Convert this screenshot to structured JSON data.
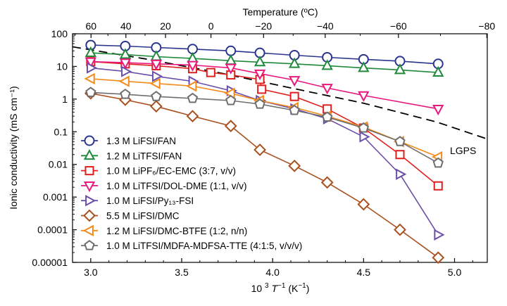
{
  "chart_data": {
    "type": "scatter",
    "xlabel": "10³ T⁻¹ (K⁻¹)",
    "ylabel": "Ionic conductivity (mS cm⁻¹)",
    "top_xlabel": "Temperature (ºC)",
    "xlim": [
      2.9,
      5.18
    ],
    "ylim": [
      1e-05,
      100
    ],
    "yscale": "log",
    "xticks": [
      3.0,
      3.5,
      4.0,
      4.5,
      5.0
    ],
    "xtick_labels": [
      "3.0",
      "3.5",
      "4.0",
      "4.5",
      "5.0"
    ],
    "yticks": [
      100,
      10,
      1,
      0.1,
      0.01,
      0.001,
      0.0001,
      1e-05
    ],
    "ytick_labels": [
      "100",
      "10",
      "1",
      "0.1",
      "0.01",
      "0.001",
      "0.0001",
      "0.00001"
    ],
    "top_ticks": [
      60,
      40,
      20,
      0,
      -20,
      -40,
      -60,
      -80
    ],
    "top_tick_labels": [
      "60",
      "40",
      "20",
      "0",
      "−20",
      "−40",
      "−60",
      "−80"
    ],
    "legend_position": "bottom-left",
    "grid": false,
    "series": [
      {
        "name": "1.3 M LiFSI/FAN",
        "color": "#2b3590",
        "marker": "circle",
        "dashed": false,
        "x": [
          3.0,
          3.19,
          3.36,
          3.56,
          3.77,
          3.93,
          4.12,
          4.3,
          4.5,
          4.7,
          4.91
        ],
        "y": [
          45,
          42,
          38,
          34,
          30,
          26,
          22,
          19,
          16.5,
          14.5,
          12
        ]
      },
      {
        "name": "1.2 M LiTFSI/FAN",
        "color": "#1f8a3a",
        "marker": "triangle-up",
        "dashed": false,
        "x": [
          3.0,
          3.19,
          3.36,
          3.56,
          3.77,
          3.93,
          4.12,
          4.3,
          4.5,
          4.7,
          4.91
        ],
        "y": [
          26,
          23,
          20,
          17.5,
          15,
          13.5,
          12,
          10.5,
          9,
          7.8,
          6.5
        ]
      },
      {
        "name": "1.0 M LiPF₆/EC-EMC (3:7, v/v)",
        "color": "#e0201e",
        "marker": "square",
        "dashed": false,
        "x": [
          3.0,
          3.19,
          3.36,
          3.56,
          3.66,
          3.77,
          3.93,
          3.94,
          4.12,
          4.3,
          4.5,
          4.7,
          4.91
        ],
        "y": [
          14,
          12,
          10.5,
          8.5,
          6.5,
          5.5,
          4,
          2,
          1.2,
          0.5,
          0.13,
          0.02,
          0.0022
        ]
      },
      {
        "name": "1.0 M LiTFSI/DOL-DME (1:1, v/v)",
        "color": "#e8197e",
        "marker": "triangle-down",
        "dashed": false,
        "x": [
          3.0,
          3.19,
          3.36,
          3.56,
          3.77,
          3.93,
          4.12,
          4.3,
          4.5,
          4.91
        ],
        "y": [
          14,
          13,
          12,
          11,
          9,
          6,
          3.8,
          2.2,
          1.3,
          0.5
        ]
      },
      {
        "name": "1.0 M LiFSI/Py₁₃-FSI",
        "color": "#6b4fa8",
        "marker": "triangle-right",
        "dashed": false,
        "x": [
          3.0,
          3.19,
          3.36,
          3.56,
          3.77,
          3.93,
          4.12,
          4.3,
          4.5,
          4.7,
          4.91
        ],
        "y": [
          9,
          7,
          5,
          3.5,
          1.8,
          0.9,
          0.5,
          0.25,
          0.07,
          0.005,
          7e-05
        ]
      },
      {
        "name": "5.5 M LiFSI/DMC",
        "color": "#a8501e",
        "marker": "diamond",
        "dashed": false,
        "x": [
          3.0,
          3.19,
          3.36,
          3.56,
          3.77,
          3.93,
          4.12,
          4.3,
          4.5,
          4.7,
          4.91
        ],
        "y": [
          1.5,
          0.95,
          0.6,
          0.3,
          0.15,
          0.028,
          0.009,
          0.0028,
          0.0006,
          0.0001,
          1.4e-05
        ]
      },
      {
        "name": "1.2 M LiFSI/DMC-BTFE (1:2, n/n)",
        "color": "#f48a1c",
        "marker": "triangle-left",
        "dashed": false,
        "x": [
          3.0,
          3.19,
          3.36,
          3.56,
          3.77,
          3.93,
          4.12,
          4.3,
          4.5,
          4.7,
          4.91
        ],
        "y": [
          4.2,
          3.5,
          3.0,
          2.5,
          1.5,
          0.9,
          0.55,
          0.3,
          0.14,
          0.05,
          0.017
        ]
      },
      {
        "name": "1.0 M LiTFSI/MDFA-MDFSA-TTE (4:1:5, v/v/v)",
        "color": "#6e6e6e",
        "marker": "pentagon",
        "dashed": false,
        "x": [
          3.0,
          3.19,
          3.36,
          3.56,
          3.77,
          3.93,
          4.12,
          4.3,
          4.5,
          4.7,
          4.91
        ],
        "y": [
          1.6,
          1.4,
          1.2,
          1.05,
          0.9,
          0.7,
          0.45,
          0.28,
          0.13,
          0.05,
          0.011
        ]
      },
      {
        "name": "LGPS",
        "color": "#000000",
        "marker": "none",
        "dashed": true,
        "x": [
          2.9,
          3.3,
          3.7,
          4.1,
          4.5,
          4.9,
          5.18
        ],
        "y": [
          40,
          17,
          6.5,
          2.2,
          0.75,
          0.2,
          0.06
        ]
      }
    ]
  }
}
